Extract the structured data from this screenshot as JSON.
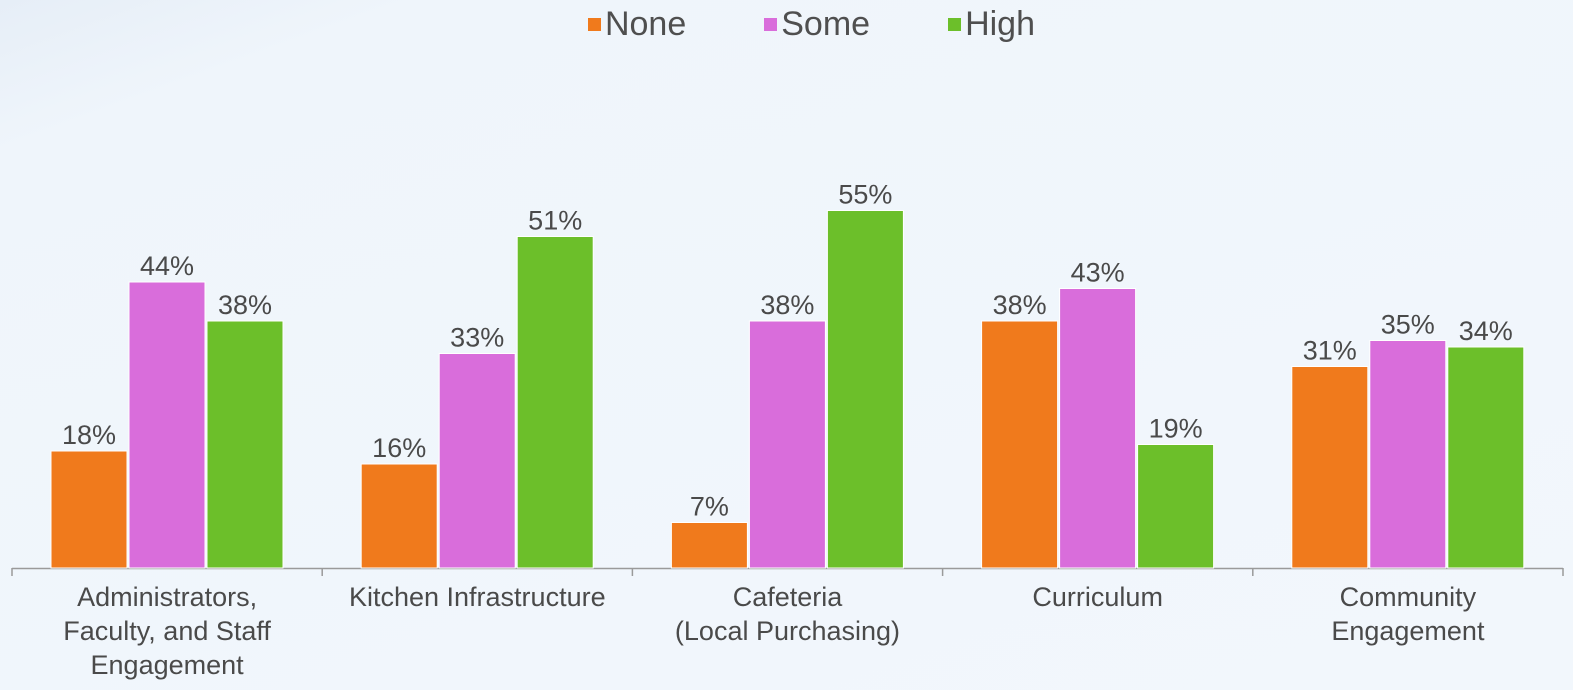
{
  "colors": {
    "None": "#f07a1c",
    "Some": "#d96ddb",
    "High": "#6cbf2a",
    "value_label": "#4a4a4a",
    "axis": "#9a9a9a"
  },
  "chart_data": {
    "type": "bar",
    "title": "",
    "xlabel": "",
    "ylabel": "",
    "ylim": [
      0,
      60
    ],
    "grid": false,
    "legend_position": "top-center",
    "categories": [
      "Administrators,\nFaculty, and Staff\nEngagement",
      "Kitchen Infrastructure",
      "Cafeteria\n(Local Purchasing)",
      "Curriculum",
      "Community\nEngagement"
    ],
    "series": [
      {
        "name": "None",
        "values": [
          18,
          16,
          7,
          38,
          31
        ]
      },
      {
        "name": "Some",
        "values": [
          44,
          33,
          38,
          43,
          35
        ]
      },
      {
        "name": "High",
        "values": [
          38,
          51,
          55,
          19,
          34
        ]
      }
    ],
    "value_suffix": "%"
  }
}
